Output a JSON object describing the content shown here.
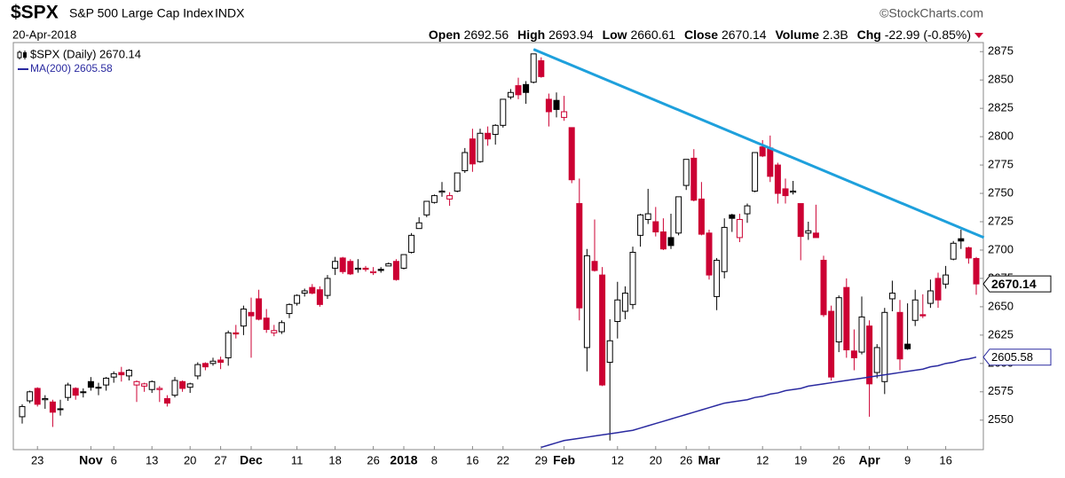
{
  "header": {
    "symbol": "$SPX",
    "name": "S&P 500 Large Cap Index",
    "exchange": "INDX",
    "source": "©StockCharts.com",
    "date": "20-Apr-2018",
    "open_label": "Open",
    "high_label": "High",
    "low_label": "Low",
    "close_label": "Close",
    "volume_label": "Volume",
    "volume": "2.3B",
    "chg_label": "Chg",
    "chg": "-22.99",
    "chg_pct": "(-0.85%)"
  },
  "chart_data": {
    "type": "candlestick",
    "name": "$SPX (Daily) 2670.14",
    "up_color": "#000000",
    "down_color": "#cc0033",
    "categories": [
      null,
      null,
      "23",
      null,
      null,
      null,
      null,
      null,
      null,
      "Nov",
      null,
      null,
      "6",
      null,
      null,
      null,
      null,
      "13",
      null,
      null,
      null,
      null,
      "20",
      null,
      null,
      null,
      "27",
      null,
      null,
      null,
      "Dec",
      null,
      null,
      null,
      null,
      null,
      "11",
      null,
      null,
      null,
      null,
      "18",
      null,
      null,
      null,
      null,
      "26",
      null,
      null,
      null,
      "2018",
      null,
      null,
      null,
      "8",
      null,
      null,
      null,
      null,
      "16",
      null,
      null,
      null,
      "22",
      null,
      null,
      null,
      null,
      "29",
      null,
      null,
      "Feb",
      null,
      null,
      null,
      null,
      null,
      null,
      "12",
      null,
      null,
      null,
      null,
      "20",
      null,
      null,
      null,
      "26",
      null,
      null,
      "Mar",
      null,
      null,
      null,
      null,
      null,
      null,
      "12",
      null,
      null,
      null,
      null,
      "19",
      null,
      null,
      null,
      null,
      "26",
      null,
      null,
      null,
      "Apr",
      null,
      null,
      null,
      null,
      "9",
      null,
      null,
      null,
      null,
      "16",
      null,
      null,
      null,
      null
    ],
    "open": [
      2553,
      2567,
      2578,
      2568,
      2566,
      2560,
      2570,
      2578,
      2575,
      2584,
      2579,
      2581,
      2588,
      2592,
      2589,
      2581,
      2580,
      2577,
      2577,
      2569,
      2572,
      2584,
      2579,
      2589,
      2600,
      2600,
      2603,
      2605,
      2627,
      2633,
      2645,
      2657,
      2640,
      2627,
      2628,
      2644,
      2653,
      2662,
      2667,
      2665,
      2660,
      2684,
      2693,
      2690,
      2683,
      2684,
      2680,
      2683,
      2686,
      2690,
      2684,
      2698,
      2719,
      2731,
      2742,
      2751,
      2745,
      2752,
      2770,
      2798,
      2778,
      2803,
      2802,
      2810,
      2835,
      2845,
      2846,
      2848,
      2867,
      2833,
      2832,
      2817,
      2808,
      2741,
      2614,
      2690,
      2678,
      2601,
      2637,
      2646,
      2652,
      2713,
      2727,
      2725,
      2716,
      2711,
      2715,
      2757,
      2781,
      2745,
      2715,
      2659,
      2681,
      2731,
      2711,
      2732,
      2752,
      2791,
      2790,
      2775,
      2754,
      2751,
      2741,
      2715,
      2715,
      2691,
      2646,
      2619,
      2667,
      2611,
      2610,
      2633,
      2592,
      2584,
      2657,
      2645,
      2617,
      2638,
      2643,
      2653,
      2675,
      2670,
      2692,
      2710,
      2702,
      2692.56
    ],
    "high": [
      2564,
      2576,
      2579,
      2572,
      2568,
      2568,
      2583,
      2579,
      2578,
      2588,
      2583,
      2588,
      2593,
      2597,
      2595,
      2585,
      2583,
      2585,
      2580,
      2572,
      2588,
      2585,
      2583,
      2601,
      2601,
      2605,
      2606,
      2629,
      2634,
      2651,
      2658,
      2665,
      2648,
      2634,
      2638,
      2653,
      2661,
      2666,
      2670,
      2668,
      2678,
      2694,
      2694,
      2692,
      2692,
      2686,
      2685,
      2685,
      2689,
      2692,
      2696,
      2715,
      2729,
      2743,
      2749,
      2760,
      2751,
      2768,
      2790,
      2807,
      2807,
      2809,
      2811,
      2833,
      2842,
      2852,
      2849,
      2873,
      2870,
      2838,
      2839,
      2836,
      2808,
      2763,
      2701,
      2727,
      2685,
      2639,
      2672,
      2668,
      2703,
      2732,
      2754,
      2738,
      2728,
      2732,
      2747,
      2780,
      2789,
      2760,
      2718,
      2693,
      2728,
      2732,
      2732,
      2741,
      2786,
      2797,
      2801,
      2777,
      2763,
      2761,
      2741,
      2725,
      2740,
      2695,
      2651,
      2660,
      2675,
      2630,
      2659,
      2638,
      2617,
      2649,
      2673,
      2656,
      2653,
      2665,
      2661,
      2674,
      2680,
      2686,
      2708,
      2718,
      2703,
      2693.94
    ],
    "low": [
      2547,
      2565,
      2562,
      2560,
      2544,
      2554,
      2567,
      2568,
      2570,
      2576,
      2572,
      2576,
      2583,
      2584,
      2585,
      2566,
      2575,
      2574,
      2566,
      2562,
      2570,
      2575,
      2574,
      2586,
      2594,
      2598,
      2595,
      2598,
      2622,
      2625,
      2605,
      2638,
      2627,
      2624,
      2626,
      2640,
      2651,
      2659,
      2661,
      2650,
      2657,
      2678,
      2679,
      2678,
      2680,
      2681,
      2678,
      2680,
      2686,
      2673,
      2683,
      2697,
      2719,
      2729,
      2741,
      2747,
      2739,
      2751,
      2768,
      2769,
      2777,
      2792,
      2793,
      2808,
      2833,
      2833,
      2829,
      2847,
      2852,
      2809,
      2817,
      2814,
      2759,
      2638,
      2593,
      2681,
      2580,
      2532,
      2622,
      2639,
      2648,
      2703,
      2723,
      2712,
      2700,
      2701,
      2713,
      2753,
      2743,
      2713,
      2674,
      2647,
      2675,
      2716,
      2707,
      2724,
      2751,
      2782,
      2760,
      2741,
      2741,
      2749,
      2691,
      2709,
      2711,
      2641,
      2585,
      2610,
      2605,
      2594,
      2608,
      2553,
      2587,
      2573,
      2646,
      2594,
      2612,
      2633,
      2640,
      2649,
      2649,
      2666,
      2691,
      2701,
      2688,
      2660.61
    ],
    "close": [
      2562,
      2575,
      2564,
      2569,
      2557,
      2560,
      2581,
      2572,
      2575,
      2579,
      2579,
      2587,
      2591,
      2590,
      2594,
      2584,
      2582,
      2584,
      2578,
      2565,
      2585,
      2578,
      2582,
      2599,
      2597,
      2602,
      2601,
      2627,
      2626,
      2648,
      2642,
      2639,
      2630,
      2629,
      2636,
      2652,
      2660,
      2664,
      2662,
      2652,
      2675,
      2690,
      2681,
      2679,
      2684,
      2683,
      2681,
      2682,
      2688,
      2674,
      2696,
      2713,
      2724,
      2743,
      2748,
      2752,
      2748,
      2768,
      2786,
      2776,
      2803,
      2798,
      2810,
      2833,
      2839,
      2837,
      2839,
      2873,
      2853,
      2822,
      2824,
      2822,
      2762,
      2649,
      2695,
      2682,
      2581,
      2620,
      2656,
      2662,
      2698,
      2731,
      2732,
      2716,
      2701,
      2704,
      2747,
      2780,
      2744,
      2714,
      2678,
      2691,
      2720,
      2728,
      2727,
      2739,
      2786,
      2783,
      2765,
      2750,
      2748,
      2752,
      2712,
      2717,
      2711,
      2643,
      2588,
      2658,
      2612,
      2605,
      2641,
      2582,
      2614,
      2645,
      2662,
      2604,
      2613,
      2656,
      2642,
      2664,
      2656,
      2678,
      2706,
      2708,
      2693,
      2670.14
    ],
    "ma": {
      "name": "MA(200) 2605.58",
      "color": "#2a2aa0",
      "values": [
        null,
        null,
        null,
        null,
        null,
        null,
        null,
        null,
        null,
        null,
        null,
        null,
        null,
        null,
        null,
        null,
        null,
        null,
        null,
        null,
        null,
        null,
        null,
        null,
        null,
        null,
        null,
        null,
        null,
        null,
        null,
        null,
        null,
        null,
        null,
        null,
        null,
        null,
        null,
        null,
        null,
        null,
        null,
        null,
        null,
        null,
        null,
        null,
        null,
        null,
        null,
        null,
        null,
        null,
        null,
        null,
        null,
        null,
        null,
        null,
        null,
        null,
        null,
        null,
        null,
        null,
        null,
        null,
        2526,
        2528,
        2530,
        2532,
        2533,
        2534,
        2535,
        2536,
        2537,
        2538,
        2539,
        2540,
        2541,
        2543,
        2545,
        2547,
        2549,
        2551,
        2553,
        2555,
        2557,
        2559,
        2561,
        2563,
        2565,
        2566,
        2567,
        2568,
        2570,
        2571,
        2573,
        2574,
        2576,
        2577,
        2578,
        2580,
        2581,
        2582,
        2583,
        2584,
        2585,
        2586,
        2587,
        2588,
        2589,
        2590,
        2591,
        2592,
        2593,
        2594,
        2595,
        2597,
        2598,
        2600,
        2601,
        2603,
        2604,
        2605.58
      ]
    },
    "trendline": {
      "color": "#1ea0dc",
      "from": {
        "index": 67,
        "value": 2877
      },
      "to": {
        "index": 126,
        "value": 2711
      }
    },
    "ylim": [
      2524,
      2883
    ],
    "yticks": [
      2550,
      2575,
      2600,
      2625,
      2650,
      2675,
      2700,
      2725,
      2750,
      2775,
      2800,
      2825,
      2850,
      2875
    ]
  }
}
